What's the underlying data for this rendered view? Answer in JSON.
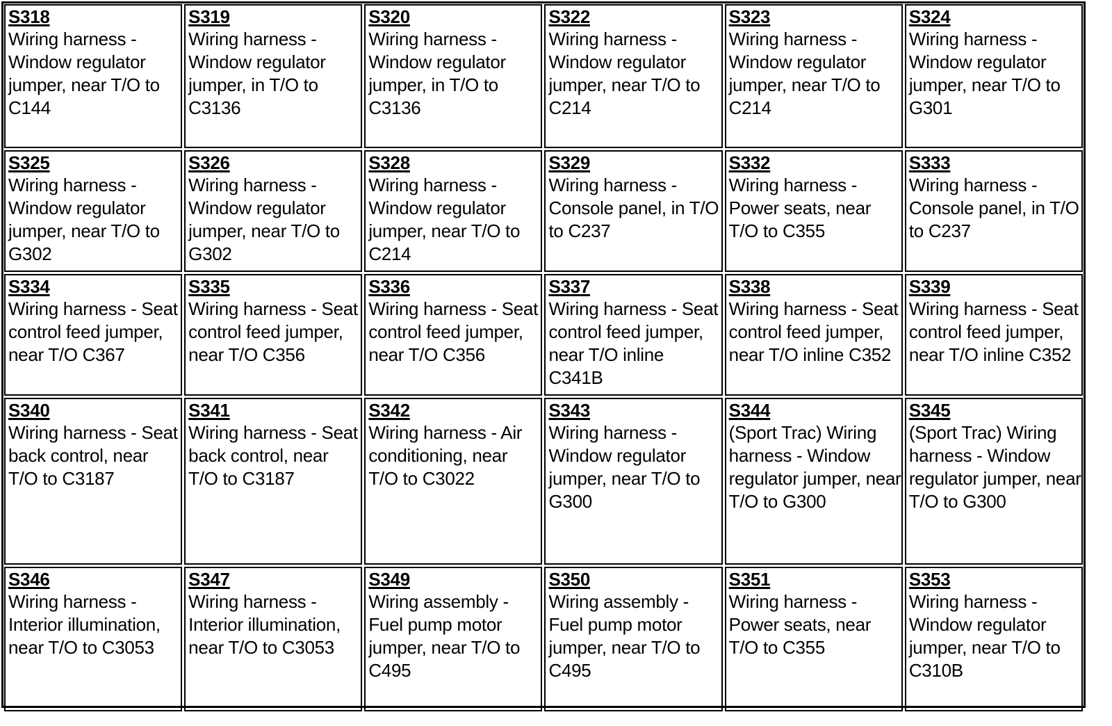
{
  "splices": [
    {
      "id": "S318",
      "desc": "Wiring harness - Window regulator jumper, near T/O to C144"
    },
    {
      "id": "S319",
      "desc": "Wiring harness - Window regulator jumper, in T/O to C3136"
    },
    {
      "id": "S320",
      "desc": "Wiring harness - Window regulator jumper, in T/O to C3136"
    },
    {
      "id": "S322",
      "desc": "Wiring harness - Window regulator jumper, near T/O to C214"
    },
    {
      "id": "S323",
      "desc": "Wiring harness - Window regulator jumper, near T/O to C214"
    },
    {
      "id": "S324",
      "desc": "Wiring harness - Window regulator jumper, near T/O to G301"
    },
    {
      "id": "S325",
      "desc": "Wiring harness - Window regulator jumper, near T/O to G302"
    },
    {
      "id": "S326",
      "desc": "Wiring harness - Window regulator jumper, near T/O to G302"
    },
    {
      "id": "S328",
      "desc": "Wiring harness - Window regulator jumper, near T/O to C214"
    },
    {
      "id": "S329",
      "desc": "Wiring harness - Console panel, in T/O to C237"
    },
    {
      "id": "S332",
      "desc": "Wiring harness - Power seats, near T/O to C355"
    },
    {
      "id": "S333",
      "desc": "Wiring harness - Console panel, in T/O to C237"
    },
    {
      "id": "S334",
      "desc": "Wiring harness - Seat control feed jumper, near T/O C367"
    },
    {
      "id": "S335",
      "desc": "Wiring harness - Seat control feed jumper, near T/O C356"
    },
    {
      "id": "S336",
      "desc": "Wiring harness - Seat control feed jumper, near T/O C356"
    },
    {
      "id": "S337",
      "desc": "Wiring harness - Seat control feed jumper, near T/O inline C341B"
    },
    {
      "id": "S338",
      "desc": "Wiring harness - Seat control feed jumper, near T/O inline C352"
    },
    {
      "id": "S339",
      "desc": "Wiring harness - Seat control feed jumper, near T/O inline C352"
    },
    {
      "id": "S340",
      "desc": "Wiring harness - Seat back control, near T/O to C3187"
    },
    {
      "id": "S341",
      "desc": "Wiring harness - Seat back control, near T/O to C3187"
    },
    {
      "id": "S342",
      "desc": "Wiring harness - Air conditioning, near T/O to C3022"
    },
    {
      "id": "S343",
      "desc": "Wiring harness - Window regulator jumper, near T/O to G300"
    },
    {
      "id": "S344",
      "desc": "(Sport Trac) Wiring harness - Window regulator jumper, near T/O to G300"
    },
    {
      "id": "S345",
      "desc": "(Sport Trac) Wiring harness - Window regulator jumper, near T/O to G300"
    },
    {
      "id": "S346",
      "desc": "Wiring harness - Interior illumination, near T/O to C3053"
    },
    {
      "id": "S347",
      "desc": "Wiring harness - Interior illumination, near T/O to C3053"
    },
    {
      "id": "S349",
      "desc": "Wiring assembly - Fuel pump motor jumper, near T/O to C495"
    },
    {
      "id": "S350",
      "desc": "Wiring assembly - Fuel pump motor jumper, near T/O to C495"
    },
    {
      "id": "S351",
      "desc": "Wiring harness - Power seats, near T/O to C355"
    },
    {
      "id": "S353",
      "desc": "Wiring harness - Window regulator jumper, near T/O to C310B"
    }
  ]
}
